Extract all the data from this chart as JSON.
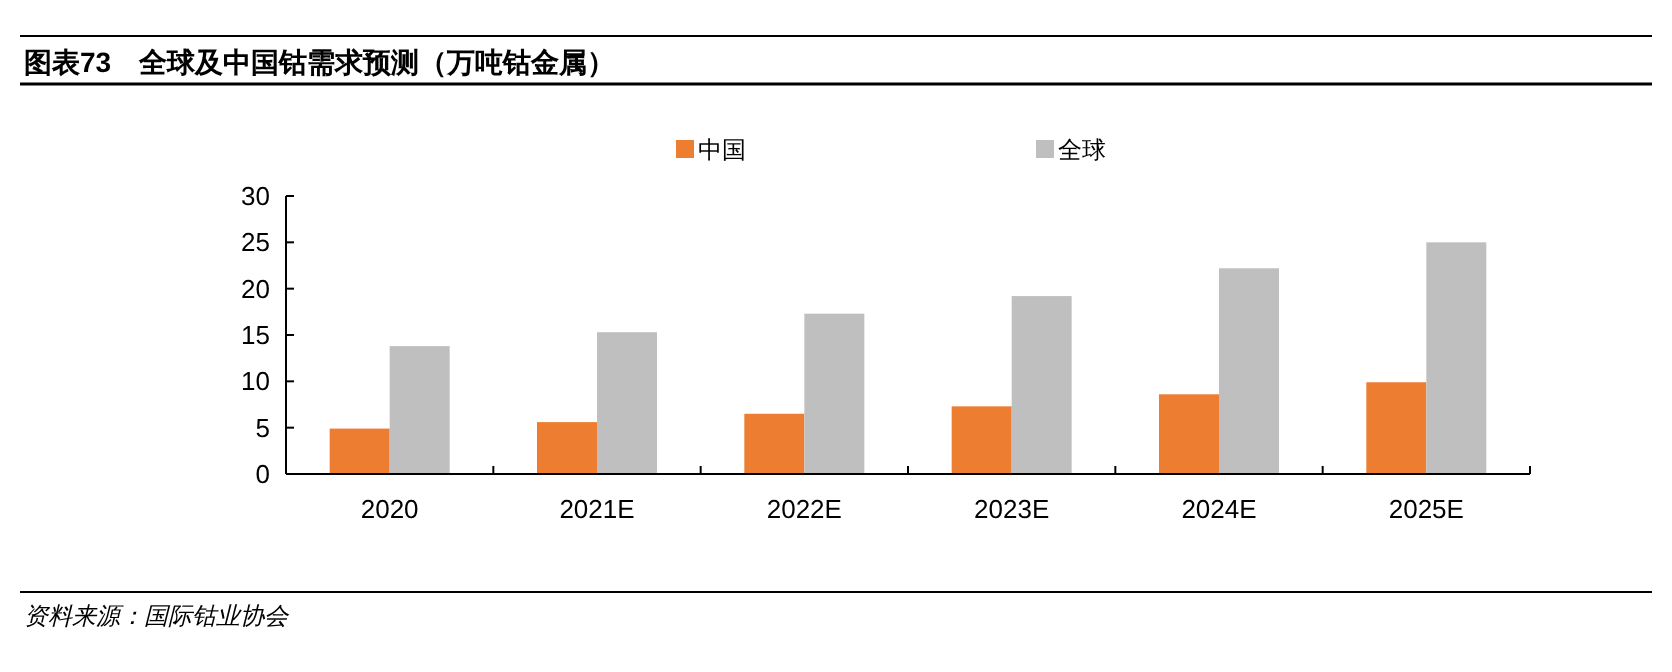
{
  "chart_data": {
    "type": "bar",
    "title": "图表73　全球及中国钴需求预测（万吨钴金属）",
    "annotations": [
      "资料来源：国际钴业协会"
    ],
    "categories": [
      "2020",
      "2021E",
      "2022E",
      "2023E",
      "2024E",
      "2025E"
    ],
    "series": [
      {
        "name": "中国",
        "color": "#ed7d31",
        "values": [
          4.9,
          5.6,
          6.5,
          7.3,
          8.6,
          9.9
        ]
      },
      {
        "name": "全球",
        "color": "#bfbfbf",
        "values": [
          13.8,
          15.3,
          17.3,
          19.2,
          22.2,
          25.0
        ]
      }
    ],
    "ylim": [
      0,
      30
    ],
    "yticks": [
      0,
      5,
      10,
      15,
      20,
      25,
      30
    ],
    "grid": false,
    "legend": "top"
  }
}
